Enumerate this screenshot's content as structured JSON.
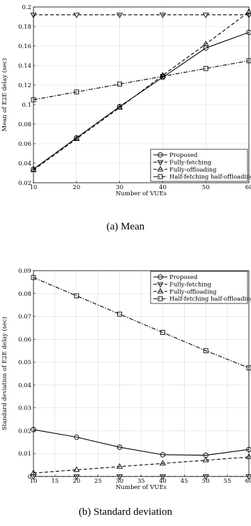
{
  "chart_data": [
    {
      "type": "line",
      "caption": "(a) Mean",
      "xlabel": "Number of VUEs",
      "ylabel": "Mean of E2E delay (sec)",
      "xlim": [
        10,
        60
      ],
      "ylim": [
        0.02,
        0.2
      ],
      "xticks": [
        10,
        20,
        30,
        40,
        50,
        60
      ],
      "yticks": [
        0.02,
        0.04,
        0.06,
        0.08,
        0.1,
        0.12,
        0.14,
        0.16,
        0.18,
        0.2
      ],
      "grid": true,
      "legend_position": "bottom-right",
      "series": [
        {
          "name": "Proposed",
          "marker": "circle",
          "dash": "solid",
          "x": [
            10,
            20,
            30,
            40,
            50,
            60
          ],
          "y": [
            0.034,
            0.066,
            0.098,
            0.128,
            0.158,
            0.174
          ]
        },
        {
          "name": "Fully-fetching",
          "marker": "triangle-down",
          "dash": "dashed",
          "x": [
            10,
            20,
            30,
            40,
            50,
            60
          ],
          "y": [
            0.192,
            0.192,
            0.192,
            0.192,
            0.192,
            0.192
          ]
        },
        {
          "name": "Fully-offloading",
          "marker": "triangle-up",
          "dash": "dashed",
          "x": [
            10,
            20,
            30,
            40,
            50,
            60
          ],
          "y": [
            0.033,
            0.065,
            0.097,
            0.13,
            0.162,
            0.195
          ]
        },
        {
          "name": "Half-fetching half-offloading",
          "marker": "square",
          "dash": "dashdot",
          "x": [
            10,
            20,
            30,
            40,
            50,
            60
          ],
          "y": [
            0.105,
            0.113,
            0.121,
            0.129,
            0.137,
            0.145
          ]
        }
      ]
    },
    {
      "type": "line",
      "caption": "(b) Standard deviation",
      "xlabel": "Number of VUEs",
      "ylabel": "Standard deviation of E2E delay (sec)",
      "xlim": [
        10,
        60
      ],
      "ylim": [
        0,
        0.09
      ],
      "xticks": [
        10,
        15,
        20,
        25,
        30,
        35,
        40,
        45,
        50,
        55,
        60
      ],
      "yticks": [
        0,
        0.01,
        0.02,
        0.03,
        0.04,
        0.05,
        0.06,
        0.07,
        0.08,
        0.09
      ],
      "grid": true,
      "legend_position": "top-right",
      "series": [
        {
          "name": "Proposed",
          "marker": "circle",
          "dash": "solid",
          "x": [
            10,
            20,
            30,
            40,
            50,
            60
          ],
          "y": [
            0.0205,
            0.0172,
            0.0128,
            0.0095,
            0.0093,
            0.0118
          ]
        },
        {
          "name": "Fully-fetching",
          "marker": "triangle-down",
          "dash": "dashed",
          "x": [
            10,
            20,
            30,
            40,
            50,
            60
          ],
          "y": [
            0,
            0,
            0,
            0,
            0,
            0
          ]
        },
        {
          "name": "Fully-offloading",
          "marker": "triangle-up",
          "dash": "dashed",
          "x": [
            10,
            20,
            30,
            40,
            50,
            60
          ],
          "y": [
            0.0015,
            0.0029,
            0.0043,
            0.0057,
            0.0071,
            0.0085
          ]
        },
        {
          "name": "Half-fetching half-offloading",
          "marker": "square",
          "dash": "dashdot",
          "x": [
            10,
            20,
            30,
            40,
            50,
            60
          ],
          "y": [
            0.087,
            0.079,
            0.071,
            0.063,
            0.055,
            0.0475
          ]
        }
      ]
    }
  ]
}
